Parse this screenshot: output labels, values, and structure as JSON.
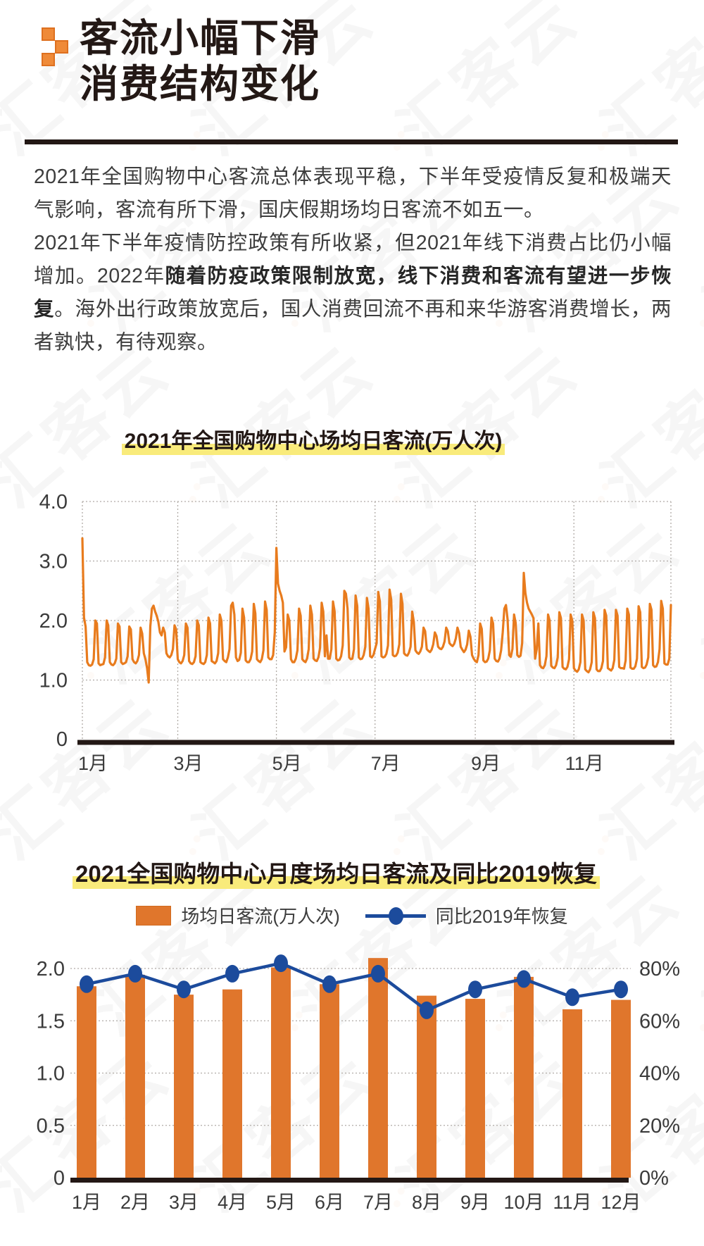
{
  "header": {
    "title_line1": "客流小幅下滑",
    "title_line2": "消费结构变化"
  },
  "intro": {
    "p1": "2021年全国购物中心客流总体表现平稳，下半年受疫情反复和极端天气影响，客流有所下滑，国庆假期场均日客流不如五一。",
    "p2_pre": "2021年下半年疫情防控政策有所收紧，但2021年线下消费占比仍小幅增加。2022年",
    "p2_bold": "随着防疫政策限制放宽，线下消费和客流有望进一步恢复",
    "p2_post": "。海外出行政策放宽后，国人消费回流不再和来华游客消费增长，两者孰快，有待观察。"
  },
  "watermark": {
    "text": "汇客云"
  },
  "colors": {
    "orange_line": "#E87B1D",
    "orange_bar": "#E0762C",
    "blue_line": "#1C4B9C",
    "axis_dark": "#231815",
    "grid_gray": "#B0ABA6",
    "tick_text": "#3a3a3a",
    "highlight_yellow": "#F9EB7B"
  },
  "chart_data": [
    {
      "type": "line",
      "title": "2021年全国购物中心场均日客流(万人次)",
      "ylabel": "万人次",
      "ylim": [
        0,
        4.0
      ],
      "y_ticks": [
        "4.0",
        "3.0",
        "2.0",
        "1.0",
        "0"
      ],
      "y_tick_values": [
        4,
        3,
        2,
        1,
        0
      ],
      "x_ticks": [
        "1月",
        "3月",
        "5月",
        "7月",
        "9月",
        "11月"
      ],
      "x_tick_days": [
        0,
        59,
        120,
        181,
        243,
        304
      ],
      "grid": "dotted",
      "daily_by_month": [
        [
          3.38,
          2.05,
          1.9,
          1.3,
          1.25,
          1.24,
          1.26,
          1.35,
          2.0,
          1.95,
          1.28,
          1.25,
          1.26,
          1.27,
          1.38,
          2.0,
          1.92,
          1.3,
          1.26,
          1.25,
          1.28,
          1.36,
          1.95,
          1.9,
          1.3,
          1.27,
          1.28,
          1.3,
          1.4,
          1.9,
          1.85
        ],
        [
          1.35,
          1.3,
          1.28,
          1.32,
          1.42,
          1.88,
          1.78,
          1.45,
          1.35,
          1.2,
          0.96,
          1.9,
          2.2,
          2.25,
          2.15,
          2.08,
          1.98,
          1.8,
          1.75,
          1.88,
          1.8,
          1.45,
          1.4,
          1.38,
          1.42,
          1.52,
          1.92,
          1.85
        ],
        [
          1.35,
          1.3,
          1.28,
          1.32,
          1.42,
          1.95,
          1.88,
          1.32,
          1.28,
          1.27,
          1.3,
          1.4,
          2.0,
          1.92,
          1.3,
          1.28,
          1.27,
          1.3,
          1.42,
          2.05,
          1.95,
          1.32,
          1.3,
          1.28,
          1.32,
          1.45,
          2.1,
          2.0,
          1.35,
          1.32,
          1.3
        ],
        [
          1.38,
          1.52,
          2.25,
          2.3,
          2.1,
          1.38,
          1.32,
          1.34,
          1.46,
          2.2,
          2.05,
          1.33,
          1.3,
          1.3,
          1.35,
          1.48,
          2.28,
          2.12,
          1.35,
          1.32,
          1.3,
          1.35,
          1.5,
          2.32,
          2.18,
          1.38,
          1.35,
          1.35,
          1.42,
          1.8
        ],
        [
          3.22,
          2.62,
          2.5,
          2.42,
          2.3,
          1.48,
          1.55,
          2.1,
          2.0,
          1.35,
          1.3,
          1.3,
          1.36,
          1.5,
          2.2,
          2.08,
          1.35,
          1.32,
          1.3,
          1.36,
          1.52,
          2.25,
          2.1,
          1.36,
          1.33,
          1.32,
          1.38,
          1.54,
          2.3,
          2.15,
          1.4
        ],
        [
          1.75,
          1.36,
          1.36,
          1.52,
          2.32,
          2.15,
          1.36,
          1.33,
          1.34,
          1.4,
          1.58,
          2.5,
          2.45,
          2.2,
          1.38,
          1.35,
          1.36,
          1.52,
          2.42,
          2.25,
          1.38,
          1.35,
          1.36,
          1.42,
          1.56,
          2.38,
          2.2,
          1.4,
          1.38,
          1.42
        ],
        [
          1.52,
          1.62,
          2.48,
          2.32,
          1.4,
          1.38,
          1.39,
          1.44,
          1.58,
          2.52,
          2.35,
          1.42,
          1.4,
          1.41,
          1.46,
          1.6,
          2.45,
          2.28,
          1.45,
          1.42,
          1.41,
          1.46,
          1.56,
          2.15,
          1.98,
          1.5,
          1.46,
          1.44,
          1.48,
          1.56,
          1.88
        ],
        [
          1.82,
          1.52,
          1.49,
          1.47,
          1.51,
          1.6,
          1.8,
          1.74,
          1.56,
          1.53,
          1.52,
          1.56,
          1.65,
          1.88,
          1.82,
          1.62,
          1.59,
          1.57,
          1.61,
          1.7,
          1.88,
          1.79,
          1.56,
          1.51,
          1.47,
          1.51,
          1.6,
          1.83,
          1.73,
          1.42,
          1.36
        ],
        [
          1.32,
          1.3,
          1.42,
          1.95,
          1.86,
          1.33,
          1.3,
          1.31,
          1.36,
          1.5,
          2.05,
          1.95,
          1.36,
          1.32,
          1.31,
          1.36,
          1.5,
          1.8,
          2.2,
          2.26,
          2.02,
          1.42,
          1.39,
          1.52,
          2.1,
          1.96,
          1.42,
          1.39,
          1.41,
          1.62
        ],
        [
          2.8,
          2.46,
          2.3,
          2.2,
          2.15,
          2.1,
          2.04,
          1.36,
          1.52,
          1.95,
          1.25,
          1.21,
          1.2,
          1.25,
          1.4,
          2.1,
          2.0,
          1.24,
          1.21,
          1.2,
          1.25,
          1.38,
          2.14,
          2.04,
          1.22,
          1.19,
          1.18,
          1.22,
          1.35,
          2.1,
          2.0
        ],
        [
          1.2,
          1.16,
          1.14,
          1.18,
          1.3,
          2.1,
          2.0,
          1.18,
          1.15,
          1.13,
          1.18,
          1.3,
          2.14,
          2.04,
          1.18,
          1.15,
          1.15,
          1.2,
          1.32,
          2.18,
          2.08,
          1.2,
          1.18,
          1.16,
          1.2,
          1.34,
          2.18,
          2.08,
          1.22,
          1.2
        ],
        [
          1.2,
          1.19,
          1.33,
          2.2,
          2.1,
          1.21,
          1.19,
          1.19,
          1.23,
          1.36,
          2.24,
          2.14,
          1.22,
          1.2,
          1.21,
          1.26,
          1.38,
          2.28,
          2.18,
          1.25,
          1.22,
          1.23,
          1.3,
          1.52,
          2.33,
          2.2,
          1.28,
          1.26,
          1.26,
          1.36,
          2.26
        ]
      ]
    },
    {
      "type": "combo",
      "title": "2021全国购物中心月度场均日客流及同比2019恢复",
      "categories": [
        "1月",
        "2月",
        "3月",
        "4月",
        "5月",
        "6月",
        "7月",
        "8月",
        "9月",
        "10月",
        "11月",
        "12月"
      ],
      "series": [
        {
          "name": "场均日客流(万人次)",
          "type": "bar",
          "axis": "left",
          "color": "#E0762C",
          "values": [
            1.83,
            1.94,
            1.75,
            1.8,
            2.01,
            1.85,
            2.1,
            1.74,
            1.71,
            1.92,
            1.61,
            1.7
          ]
        },
        {
          "name": "同比2019年恢复",
          "type": "line",
          "axis": "right",
          "color": "#1C4B9C",
          "values_pct": [
            74,
            78,
            72,
            78,
            82,
            74,
            78,
            64,
            72,
            76,
            69,
            72
          ]
        }
      ],
      "left_ticks": [
        "2.0",
        "1.5",
        "1.0",
        "0.5",
        "0"
      ],
      "left_tick_values": [
        2.0,
        1.5,
        1.0,
        0.5,
        0
      ],
      "right_ticks": [
        "80%",
        "60%",
        "40%",
        "20%",
        "0%"
      ],
      "right_tick_values": [
        80,
        60,
        40,
        20,
        0
      ],
      "left_lim": [
        0,
        2.2
      ],
      "right_lim": [
        0,
        88
      ],
      "grid": "dotted",
      "legend_position": "top"
    }
  ]
}
